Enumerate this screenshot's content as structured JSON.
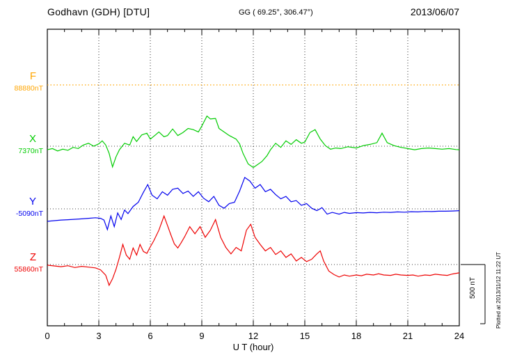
{
  "header": {
    "station": "Godhavn (GDH)  [DTU]",
    "coords": "GG ( 69.25°, 306.47°)",
    "date": "2013/06/07"
  },
  "plotted_note": "Plotted at 2013/11/12 11:22 UT",
  "scale_bar": {
    "label": "500 nT",
    "nT": 500
  },
  "xlabel": "U T (hour)",
  "chart_data": {
    "type": "line",
    "title": "Godhavn (GDH) magnetogram 2013/06/07",
    "x_unit": "UT hour",
    "x_range": [
      0,
      24
    ],
    "x_ticks": [
      0,
      3,
      6,
      9,
      12,
      15,
      18,
      21,
      24
    ],
    "grid": "dotted",
    "scale_bar_nT": 500,
    "series": [
      {
        "name": "F",
        "color": "#FFA500",
        "baseline_label": "88880nT",
        "style": "dotted",
        "points": [
          [
            0,
            0
          ],
          [
            24,
            0
          ]
        ]
      },
      {
        "name": "X",
        "color": "#00CC00",
        "baseline_label": "7370nT",
        "style": "solid",
        "points": [
          [
            0,
            -30
          ],
          [
            0.3,
            -20
          ],
          [
            0.6,
            -40
          ],
          [
            0.9,
            -25
          ],
          [
            1.2,
            -35
          ],
          [
            1.5,
            -10
          ],
          [
            1.8,
            -20
          ],
          [
            2.1,
            10
          ],
          [
            2.4,
            25
          ],
          [
            2.7,
            0
          ],
          [
            3.0,
            20
          ],
          [
            3.2,
            45
          ],
          [
            3.4,
            10
          ],
          [
            3.6,
            -60
          ],
          [
            3.8,
            -175
          ],
          [
            4.0,
            -90
          ],
          [
            4.2,
            -30
          ],
          [
            4.5,
            25
          ],
          [
            4.8,
            10
          ],
          [
            5.0,
            80
          ],
          [
            5.2,
            40
          ],
          [
            5.5,
            95
          ],
          [
            5.8,
            110
          ],
          [
            6.0,
            60
          ],
          [
            6.3,
            95
          ],
          [
            6.5,
            120
          ],
          [
            6.8,
            80
          ],
          [
            7.0,
            90
          ],
          [
            7.3,
            145
          ],
          [
            7.6,
            90
          ],
          [
            7.9,
            115
          ],
          [
            8.2,
            150
          ],
          [
            8.5,
            140
          ],
          [
            8.8,
            120
          ],
          [
            9.0,
            170
          ],
          [
            9.3,
            255
          ],
          [
            9.5,
            230
          ],
          [
            9.8,
            235
          ],
          [
            10.0,
            150
          ],
          [
            10.3,
            120
          ],
          [
            10.6,
            90
          ],
          [
            11.0,
            60
          ],
          [
            11.2,
            20
          ],
          [
            11.4,
            -60
          ],
          [
            11.7,
            -150
          ],
          [
            12.0,
            -180
          ],
          [
            12.2,
            -160
          ],
          [
            12.5,
            -130
          ],
          [
            12.8,
            -80
          ],
          [
            13.0,
            -30
          ],
          [
            13.3,
            25
          ],
          [
            13.6,
            -10
          ],
          [
            13.9,
            45
          ],
          [
            14.2,
            15
          ],
          [
            14.5,
            55
          ],
          [
            14.8,
            25
          ],
          [
            15.0,
            35
          ],
          [
            15.3,
            115
          ],
          [
            15.6,
            140
          ],
          [
            15.9,
            60
          ],
          [
            16.2,
            5
          ],
          [
            16.5,
            -25
          ],
          [
            16.8,
            -15
          ],
          [
            17.1,
            -20
          ],
          [
            17.5,
            -5
          ],
          [
            18.0,
            -15
          ],
          [
            18.4,
            5
          ],
          [
            18.8,
            15
          ],
          [
            19.2,
            30
          ],
          [
            19.5,
            110
          ],
          [
            19.8,
            30
          ],
          [
            20.2,
            5
          ],
          [
            20.6,
            -10
          ],
          [
            21.0,
            -20
          ],
          [
            21.4,
            -30
          ],
          [
            21.8,
            -20
          ],
          [
            22.2,
            -15
          ],
          [
            22.6,
            -20
          ],
          [
            23.0,
            -25
          ],
          [
            23.4,
            -20
          ],
          [
            23.8,
            -28
          ],
          [
            24.0,
            -30
          ]
        ]
      },
      {
        "name": "Y",
        "color": "#0000EE",
        "baseline_label": "-5090nT",
        "style": "solid",
        "points": [
          [
            0,
            -105
          ],
          [
            0.4,
            -100
          ],
          [
            0.8,
            -95
          ],
          [
            1.2,
            -92
          ],
          [
            1.6,
            -88
          ],
          [
            2.0,
            -85
          ],
          [
            2.4,
            -80
          ],
          [
            2.8,
            -75
          ],
          [
            3.1,
            -80
          ],
          [
            3.3,
            -95
          ],
          [
            3.5,
            -175
          ],
          [
            3.7,
            -60
          ],
          [
            3.9,
            -150
          ],
          [
            4.1,
            -35
          ],
          [
            4.3,
            -90
          ],
          [
            4.5,
            -10
          ],
          [
            4.7,
            -40
          ],
          [
            5.0,
            20
          ],
          [
            5.3,
            55
          ],
          [
            5.6,
            140
          ],
          [
            5.85,
            205
          ],
          [
            6.1,
            115
          ],
          [
            6.4,
            85
          ],
          [
            6.7,
            145
          ],
          [
            7.0,
            115
          ],
          [
            7.3,
            165
          ],
          [
            7.6,
            175
          ],
          [
            7.9,
            130
          ],
          [
            8.2,
            150
          ],
          [
            8.5,
            105
          ],
          [
            8.8,
            145
          ],
          [
            9.1,
            90
          ],
          [
            9.4,
            60
          ],
          [
            9.7,
            105
          ],
          [
            10.0,
            30
          ],
          [
            10.3,
            5
          ],
          [
            10.6,
            45
          ],
          [
            10.9,
            55
          ],
          [
            11.2,
            150
          ],
          [
            11.5,
            265
          ],
          [
            11.8,
            235
          ],
          [
            12.1,
            175
          ],
          [
            12.4,
            205
          ],
          [
            12.7,
            145
          ],
          [
            13.0,
            165
          ],
          [
            13.3,
            120
          ],
          [
            13.6,
            85
          ],
          [
            13.9,
            105
          ],
          [
            14.2,
            60
          ],
          [
            14.5,
            70
          ],
          [
            14.8,
            30
          ],
          [
            15.1,
            45
          ],
          [
            15.4,
            5
          ],
          [
            15.7,
            -15
          ],
          [
            16.0,
            10
          ],
          [
            16.3,
            -45
          ],
          [
            16.6,
            -30
          ],
          [
            17.0,
            -45
          ],
          [
            17.3,
            -30
          ],
          [
            17.6,
            -38
          ],
          [
            18.0,
            -32
          ],
          [
            18.4,
            -35
          ],
          [
            18.8,
            -30
          ],
          [
            19.2,
            -33
          ],
          [
            19.6,
            -28
          ],
          [
            20.0,
            -30
          ],
          [
            20.4,
            -26
          ],
          [
            20.8,
            -28
          ],
          [
            21.2,
            -24
          ],
          [
            21.6,
            -26
          ],
          [
            22.0,
            -22
          ],
          [
            22.4,
            -23
          ],
          [
            22.8,
            -20
          ],
          [
            23.2,
            -20
          ],
          [
            23.6,
            -18
          ],
          [
            24.0,
            -15
          ]
        ]
      },
      {
        "name": "Z",
        "color": "#EE0000",
        "baseline_label": "55860nT",
        "style": "solid",
        "points": [
          [
            0,
            -5
          ],
          [
            0.4,
            -12
          ],
          [
            0.8,
            -18
          ],
          [
            1.2,
            -10
          ],
          [
            1.6,
            -25
          ],
          [
            2.0,
            -15
          ],
          [
            2.4,
            -22
          ],
          [
            2.8,
            -28
          ],
          [
            3.1,
            -45
          ],
          [
            3.4,
            -90
          ],
          [
            3.6,
            -175
          ],
          [
            3.8,
            -120
          ],
          [
            4.0,
            -40
          ],
          [
            4.2,
            60
          ],
          [
            4.4,
            170
          ],
          [
            4.6,
            80
          ],
          [
            4.8,
            45
          ],
          [
            5.0,
            140
          ],
          [
            5.2,
            80
          ],
          [
            5.4,
            170
          ],
          [
            5.6,
            110
          ],
          [
            5.8,
            95
          ],
          [
            6.0,
            150
          ],
          [
            6.2,
            200
          ],
          [
            6.5,
            290
          ],
          [
            6.8,
            410
          ],
          [
            7.0,
            330
          ],
          [
            7.2,
            250
          ],
          [
            7.4,
            175
          ],
          [
            7.6,
            140
          ],
          [
            7.8,
            185
          ],
          [
            8.0,
            235
          ],
          [
            8.3,
            320
          ],
          [
            8.6,
            260
          ],
          [
            8.9,
            320
          ],
          [
            9.2,
            230
          ],
          [
            9.5,
            290
          ],
          [
            9.8,
            380
          ],
          [
            10.1,
            230
          ],
          [
            10.4,
            145
          ],
          [
            10.7,
            90
          ],
          [
            11.0,
            145
          ],
          [
            11.3,
            115
          ],
          [
            11.6,
            290
          ],
          [
            11.85,
            340
          ],
          [
            12.1,
            230
          ],
          [
            12.4,
            170
          ],
          [
            12.7,
            115
          ],
          [
            13.0,
            145
          ],
          [
            13.3,
            85
          ],
          [
            13.6,
            115
          ],
          [
            13.9,
            60
          ],
          [
            14.2,
            90
          ],
          [
            14.5,
            30
          ],
          [
            14.8,
            60
          ],
          [
            15.1,
            25
          ],
          [
            15.4,
            45
          ],
          [
            15.7,
            90
          ],
          [
            15.9,
            115
          ],
          [
            16.1,
            30
          ],
          [
            16.4,
            -55
          ],
          [
            16.7,
            -85
          ],
          [
            17.0,
            -105
          ],
          [
            17.3,
            -88
          ],
          [
            17.6,
            -98
          ],
          [
            18.0,
            -88
          ],
          [
            18.3,
            -95
          ],
          [
            18.6,
            -82
          ],
          [
            19.0,
            -88
          ],
          [
            19.3,
            -78
          ],
          [
            19.6,
            -88
          ],
          [
            20.0,
            -92
          ],
          [
            20.3,
            -82
          ],
          [
            20.6,
            -88
          ],
          [
            21.0,
            -92
          ],
          [
            21.3,
            -88
          ],
          [
            21.6,
            -98
          ],
          [
            22.0,
            -88
          ],
          [
            22.3,
            -92
          ],
          [
            22.6,
            -82
          ],
          [
            23.0,
            -88
          ],
          [
            23.3,
            -92
          ],
          [
            23.6,
            -80
          ],
          [
            24.0,
            -70
          ]
        ]
      }
    ]
  }
}
